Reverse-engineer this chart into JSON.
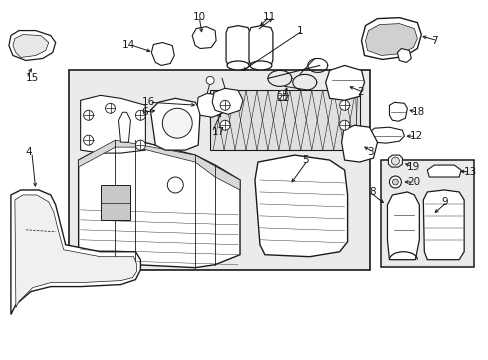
{
  "bg": "#ffffff",
  "lc": "#1a1a1a",
  "fig_w": 4.89,
  "fig_h": 3.6,
  "dpi": 100
}
